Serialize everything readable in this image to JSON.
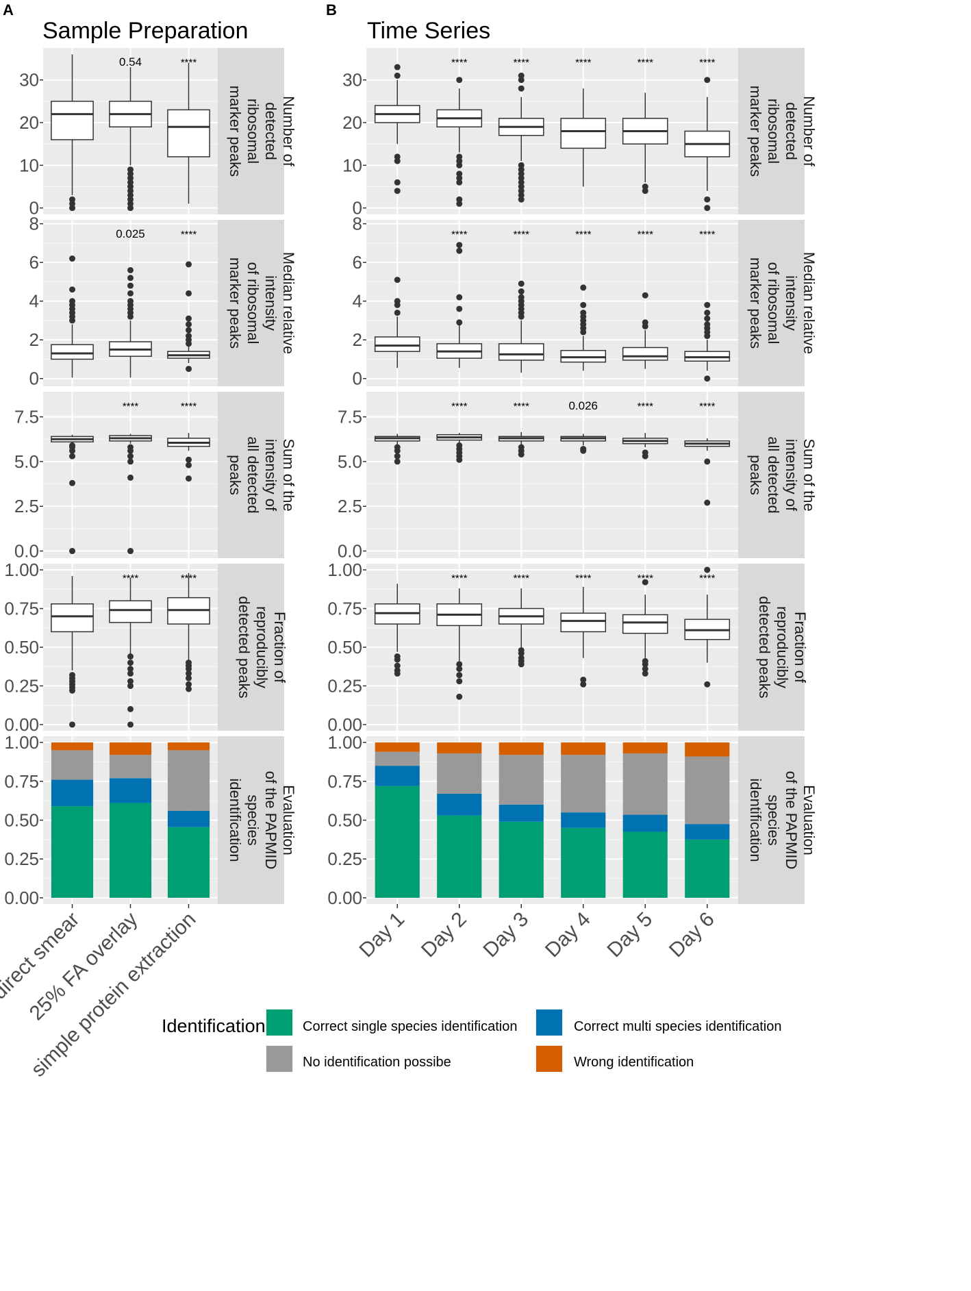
{
  "panel_letters": [
    "A",
    "B"
  ],
  "legend": {
    "title": "Identification",
    "items": [
      {
        "label": "Correct single species identification",
        "color": "#009E73"
      },
      {
        "label": "Correct multi species identification",
        "color": "#0072B2"
      },
      {
        "label": "No identification possibe",
        "color": "#999999"
      },
      {
        "label": "Wrong identification",
        "color": "#D55E00"
      }
    ]
  },
  "chart_data": [
    {
      "type": "box",
      "panel": "A",
      "title": "Sample Preparation",
      "categories": [
        "direct smear",
        "25% FA overlay",
        "simple protein extraction"
      ],
      "facets": [
        {
          "strip": [
            "Number of",
            "detected",
            "ribosomal",
            "marker peaks"
          ],
          "ylim": [
            -1.5,
            37.5
          ],
          "yticks": [
            0,
            10,
            20,
            30
          ],
          "ytick_labels": [
            "0",
            "10",
            "20",
            "30"
          ],
          "annotations": [
            "",
            "0.54",
            "****"
          ],
          "boxes": [
            {
              "q1": 16,
              "median": 22,
              "q3": 25,
              "wlo": 3,
              "whi": 36,
              "outliers": [
                0,
                1,
                2
              ]
            },
            {
              "q1": 19,
              "median": 22,
              "q3": 25,
              "wlo": 10,
              "whi": 33,
              "outliers": [
                0,
                1,
                2,
                3,
                4,
                5,
                6,
                7,
                8,
                9
              ]
            },
            {
              "q1": 12,
              "median": 19,
              "q3": 23,
              "wlo": 1,
              "whi": 34,
              "outliers": []
            }
          ]
        },
        {
          "strip": [
            "Median relative",
            "intensity",
            "of ribosomal",
            "marker peaks"
          ],
          "ylim": [
            -0.4,
            8.2
          ],
          "yticks": [
            0,
            2,
            4,
            6,
            8
          ],
          "ytick_labels": [
            "0",
            "2",
            "4",
            "6",
            "8"
          ],
          "annotations": [
            "",
            "0.025",
            "****"
          ],
          "boxes": [
            {
              "q1": 1.0,
              "median": 1.3,
              "q3": 1.75,
              "wlo": 0.05,
              "whi": 2.8,
              "outliers": [
                3.0,
                3.2,
                3.4,
                3.6,
                3.8,
                4.0,
                4.6,
                6.2
              ]
            },
            {
              "q1": 1.15,
              "median": 1.5,
              "q3": 1.9,
              "wlo": 0.05,
              "whi": 3.0,
              "outliers": [
                3.2,
                3.4,
                3.6,
                3.8,
                4.0,
                4.4,
                4.8,
                5.2,
                5.6
              ]
            },
            {
              "q1": 1.05,
              "median": 1.2,
              "q3": 1.4,
              "wlo": 0.8,
              "whi": 1.7,
              "outliers": [
                0.5,
                1.8,
                2.0,
                2.2,
                2.5,
                2.8,
                3.1,
                4.4,
                5.9
              ]
            }
          ]
        },
        {
          "strip": [
            "Sum of the",
            "intensity of",
            "all detected",
            "peaks"
          ],
          "ylim": [
            -0.4,
            8.9
          ],
          "yticks": [
            0,
            2.5,
            5,
            7.5
          ],
          "ytick_labels": [
            "0.0",
            "2.5",
            "5.0",
            "7.5"
          ],
          "annotations": [
            "",
            "****",
            "****"
          ],
          "boxes": [
            {
              "q1": 6.1,
              "median": 6.25,
              "q3": 6.4,
              "wlo": 6.0,
              "whi": 6.5,
              "outliers": [
                5.3,
                5.6,
                5.8,
                5.9,
                3.8,
                0
              ]
            },
            {
              "q1": 6.15,
              "median": 6.3,
              "q3": 6.45,
              "wlo": 6.0,
              "whi": 6.55,
              "outliers": [
                5.0,
                5.3,
                5.6,
                5.8,
                4.1,
                0
              ]
            },
            {
              "q1": 5.85,
              "median": 6.05,
              "q3": 6.3,
              "wlo": 5.6,
              "whi": 6.6,
              "outliers": [
                4.8,
                5.1,
                4.05
              ]
            }
          ]
        },
        {
          "strip": [
            "Fraction of",
            "reproducibly",
            "detected peaks"
          ],
          "ylim": [
            -0.04,
            1.04
          ],
          "yticks": [
            0,
            0.25,
            0.5,
            0.75,
            1.0
          ],
          "ytick_labels": [
            "0.00",
            "0.25",
            "0.50",
            "0.75",
            "1.00"
          ],
          "annotations": [
            "",
            "****",
            "****"
          ],
          "boxes": [
            {
              "q1": 0.6,
              "median": 0.7,
              "q3": 0.78,
              "wlo": 0.35,
              "whi": 0.96,
              "outliers": [
                0.22,
                0.24,
                0.26,
                0.28,
                0.3,
                0.32,
                0.0
              ]
            },
            {
              "q1": 0.66,
              "median": 0.74,
              "q3": 0.8,
              "wlo": 0.45,
              "whi": 0.95,
              "outliers": [
                0.25,
                0.28,
                0.33,
                0.36,
                0.4,
                0.44,
                0.1,
                0.0
              ]
            },
            {
              "q1": 0.65,
              "median": 0.74,
              "q3": 0.82,
              "wlo": 0.41,
              "whi": 0.98,
              "outliers": [
                0.23,
                0.26,
                0.3,
                0.33,
                0.36,
                0.38,
                0.4
              ]
            }
          ]
        },
        {
          "type": "stacked_bar",
          "strip": [
            "Evaluation",
            "of the PAPMID",
            "species",
            "identification"
          ],
          "ylim": [
            -0.04,
            1.04
          ],
          "yticks": [
            0,
            0.25,
            0.5,
            0.75,
            1.0
          ],
          "ytick_labels": [
            "0.00",
            "0.25",
            "0.50",
            "0.75",
            "1.00"
          ],
          "series_order": [
            "Correct single species identification",
            "Correct multi species identification",
            "No identification possibe",
            "Wrong identification"
          ],
          "stacks": [
            [
              0.59,
              0.17,
              0.19,
              0.05
            ],
            [
              0.61,
              0.16,
              0.15,
              0.08
            ],
            [
              0.455,
              0.105,
              0.39,
              0.05
            ]
          ]
        }
      ]
    },
    {
      "type": "box",
      "panel": "B",
      "title": "Time Series",
      "categories": [
        "Day 1",
        "Day 2",
        "Day 3",
        "Day 4",
        "Day 5",
        "Day 6"
      ],
      "facets": [
        {
          "strip": [
            "Number of",
            "detected",
            "ribosomal",
            "marker peaks"
          ],
          "ylim": [
            -1.5,
            37.5
          ],
          "yticks": [
            0,
            10,
            20,
            30
          ],
          "ytick_labels": [
            "0",
            "10",
            "20",
            "30"
          ],
          "annotations": [
            "",
            "****",
            "****",
            "****",
            "****",
            "****"
          ],
          "boxes": [
            {
              "q1": 20,
              "median": 22,
              "q3": 24,
              "wlo": 15,
              "whi": 30,
              "outliers": [
                4,
                6,
                11,
                12,
                31,
                33
              ]
            },
            {
              "q1": 19,
              "median": 21,
              "q3": 23,
              "wlo": 13,
              "whi": 28,
              "outliers": [
                1,
                2,
                6,
                7,
                8,
                10,
                11,
                12,
                30
              ]
            },
            {
              "q1": 17,
              "median": 19,
              "q3": 21,
              "wlo": 11,
              "whi": 26,
              "outliers": [
                2,
                3,
                4,
                5,
                6,
                7,
                8,
                9,
                10,
                28,
                30,
                31
              ]
            },
            {
              "q1": 14,
              "median": 18,
              "q3": 21,
              "wlo": 5,
              "whi": 28,
              "outliers": []
            },
            {
              "q1": 15,
              "median": 18,
              "q3": 21,
              "wlo": 6,
              "whi": 27,
              "outliers": [
                4,
                5
              ]
            },
            {
              "q1": 12,
              "median": 15,
              "q3": 18,
              "wlo": 4,
              "whi": 26,
              "outliers": [
                0,
                2,
                30
              ]
            }
          ]
        },
        {
          "strip": [
            "Median relative",
            "intensity",
            "of ribosomal",
            "marker peaks"
          ],
          "ylim": [
            -0.4,
            8.2
          ],
          "yticks": [
            0,
            2,
            4,
            6,
            8
          ],
          "ytick_labels": [
            "0",
            "2",
            "4",
            "6",
            "8"
          ],
          "annotations": [
            "",
            "****",
            "****",
            "****",
            "****",
            "****"
          ],
          "boxes": [
            {
              "q1": 1.4,
              "median": 1.7,
              "q3": 2.15,
              "wlo": 0.55,
              "whi": 3.2,
              "outliers": [
                3.4,
                3.8,
                4.0,
                5.1
              ]
            },
            {
              "q1": 1.05,
              "median": 1.4,
              "q3": 1.8,
              "wlo": 0.55,
              "whi": 2.8,
              "outliers": [
                2.9,
                3.6,
                4.2,
                6.6,
                6.9
              ]
            },
            {
              "q1": 0.95,
              "median": 1.25,
              "q3": 1.8,
              "wlo": 0.3,
              "whi": 3.0,
              "outliers": [
                3.2,
                3.4,
                3.6,
                3.8,
                4.0,
                4.2,
                4.5,
                4.9
              ]
            },
            {
              "q1": 0.85,
              "median": 1.1,
              "q3": 1.45,
              "wlo": 0.4,
              "whi": 2.2,
              "outliers": [
                2.4,
                2.6,
                2.8,
                3.0,
                3.2,
                3.4,
                3.8,
                4.7
              ]
            },
            {
              "q1": 0.95,
              "median": 1.15,
              "q3": 1.6,
              "wlo": 0.5,
              "whi": 2.5,
              "outliers": [
                2.7,
                2.9,
                4.3
              ]
            },
            {
              "q1": 0.9,
              "median": 1.1,
              "q3": 1.4,
              "wlo": 0.4,
              "whi": 2.0,
              "outliers": [
                0.0,
                2.2,
                2.4,
                2.6,
                2.8,
                3.1,
                3.4,
                3.8
              ]
            }
          ]
        },
        {
          "strip": [
            "Sum of the",
            "intensity of",
            "all detected",
            "peaks"
          ],
          "ylim": [
            -0.4,
            8.9
          ],
          "yticks": [
            0,
            2.5,
            5,
            7.5
          ],
          "ytick_labels": [
            "0.0",
            "2.5",
            "5.0",
            "7.5"
          ],
          "annotations": [
            "",
            "****",
            "****",
            "0.026",
            "****",
            "****"
          ],
          "boxes": [
            {
              "q1": 6.15,
              "median": 6.3,
              "q3": 6.4,
              "wlo": 5.95,
              "whi": 6.55,
              "outliers": [
                5.0,
                5.3,
                5.6,
                5.8
              ]
            },
            {
              "q1": 6.2,
              "median": 6.35,
              "q3": 6.5,
              "wlo": 6.0,
              "whi": 6.6,
              "outliers": [
                5.1,
                5.3,
                5.5,
                5.7,
                5.9
              ]
            },
            {
              "q1": 6.15,
              "median": 6.3,
              "q3": 6.4,
              "wlo": 5.9,
              "whi": 6.65,
              "outliers": [
                5.4,
                5.6,
                5.8
              ]
            },
            {
              "q1": 6.15,
              "median": 6.3,
              "q3": 6.4,
              "wlo": 5.9,
              "whi": 6.55,
              "outliers": [
                5.6,
                5.7
              ]
            },
            {
              "q1": 6.0,
              "median": 6.15,
              "q3": 6.3,
              "wlo": 5.8,
              "whi": 6.6,
              "outliers": [
                5.3,
                5.5
              ]
            },
            {
              "q1": 5.85,
              "median": 6.0,
              "q3": 6.15,
              "wlo": 5.6,
              "whi": 6.3,
              "outliers": [
                5.0,
                2.7
              ]
            }
          ]
        },
        {
          "strip": [
            "Fraction of",
            "reproducibly",
            "detected peaks"
          ],
          "ylim": [
            -0.04,
            1.04
          ],
          "yticks": [
            0,
            0.25,
            0.5,
            0.75,
            1.0
          ],
          "ytick_labels": [
            "0.00",
            "0.25",
            "0.50",
            "0.75",
            "1.00"
          ],
          "annotations": [
            "",
            "****",
            "****",
            "****",
            "****",
            "****"
          ],
          "boxes": [
            {
              "q1": 0.65,
              "median": 0.72,
              "q3": 0.78,
              "wlo": 0.47,
              "whi": 0.91,
              "outliers": [
                0.33,
                0.35,
                0.38,
                0.42,
                0.44
              ]
            },
            {
              "q1": 0.64,
              "median": 0.71,
              "q3": 0.78,
              "wlo": 0.41,
              "whi": 0.88,
              "outliers": [
                0.18,
                0.28,
                0.32,
                0.36,
                0.39
              ]
            },
            {
              "q1": 0.65,
              "median": 0.7,
              "q3": 0.75,
              "wlo": 0.5,
              "whi": 0.88,
              "outliers": [
                0.39,
                0.41,
                0.43,
                0.46,
                0.48
              ]
            },
            {
              "q1": 0.6,
              "median": 0.67,
              "q3": 0.72,
              "wlo": 0.43,
              "whi": 0.89,
              "outliers": [
                0.26,
                0.29
              ]
            },
            {
              "q1": 0.59,
              "median": 0.66,
              "q3": 0.71,
              "wlo": 0.43,
              "whi": 0.84,
              "outliers": [
                0.33,
                0.36,
                0.39,
                0.41,
                0.92
              ]
            },
            {
              "q1": 0.55,
              "median": 0.61,
              "q3": 0.68,
              "wlo": 0.4,
              "whi": 0.84,
              "outliers": [
                0.26,
                1.0
              ]
            }
          ]
        },
        {
          "type": "stacked_bar",
          "strip": [
            "Evaluation",
            "of the PAPMID",
            "species",
            "identification"
          ],
          "ylim": [
            -0.04,
            1.04
          ],
          "yticks": [
            0,
            0.25,
            0.5,
            0.75,
            1.0
          ],
          "ytick_labels": [
            "0.00",
            "0.25",
            "0.50",
            "0.75",
            "1.00"
          ],
          "series_order": [
            "Correct single species identification",
            "Correct multi species identification",
            "No identification possibe",
            "Wrong identification"
          ],
          "stacks": [
            [
              0.72,
              0.13,
              0.09,
              0.06
            ],
            [
              0.53,
              0.14,
              0.26,
              0.07
            ],
            [
              0.49,
              0.11,
              0.32,
              0.08
            ],
            [
              0.45,
              0.1,
              0.37,
              0.08
            ],
            [
              0.425,
              0.11,
              0.395,
              0.07
            ],
            [
              0.375,
              0.1,
              0.435,
              0.09
            ]
          ]
        }
      ]
    }
  ]
}
